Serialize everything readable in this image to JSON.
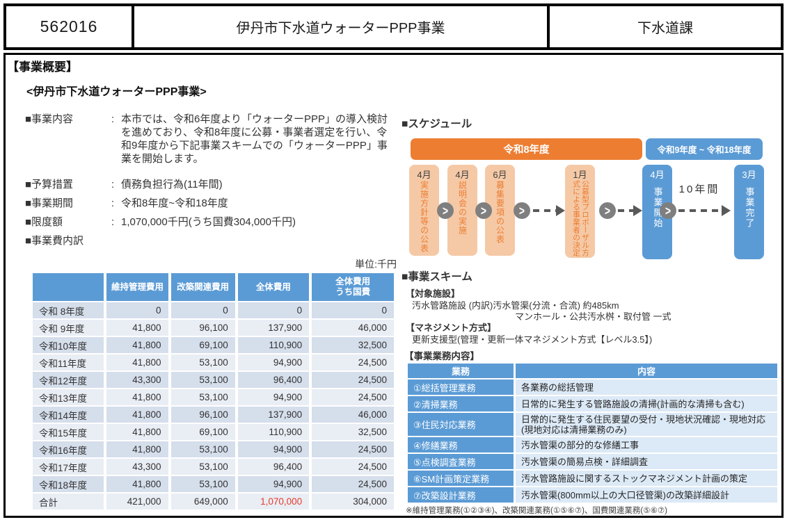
{
  "colors": {
    "orange": "#ED7D31",
    "peach": "#F5C9A6",
    "blue": "#5B9BD5",
    "row_dark": "#D5DEEB",
    "row_light": "#E9EDF4",
    "content_cell": "#DCE9F6",
    "red_total": "#E8392B"
  },
  "header": {
    "code": "562016",
    "title": "伊丹市下水道ウォーターPPP事業",
    "department": "下水道課"
  },
  "page": {
    "section_title": "【事業概要】",
    "subtitle": "<伊丹市下水道ウォーターPPP事業>"
  },
  "overview": {
    "items": [
      {
        "label": "■事業内容",
        "colon": ":",
        "value": " 本市では、令和6年度より「ウォーターPPP」の導入検討を進めており、令和8年度に公募・事業者選定を行い、令和9年度から下記事業スキームでの「ウォーターPPP」事業を開始します。"
      },
      {
        "label": "■予算措置",
        "colon": ":",
        "value": "債務負担行為(11年間)"
      },
      {
        "label": "■事業期間",
        "colon": ":",
        "value": "令和8年度~令和18年度"
      },
      {
        "label": "■限度額",
        "colon": ":",
        "value": "1,070,000千円(うち国費304,000千円)"
      },
      {
        "label": "■事業費内訳",
        "colon": "",
        "value": ""
      }
    ]
  },
  "fee_table": {
    "unit_label": "単位:千円",
    "headers": [
      "",
      "維持管理費用",
      "改築関連費用",
      "全体費用",
      "全体費用\nうち国費"
    ],
    "rows": [
      [
        "令和 8年度",
        "0",
        "0",
        "0",
        "0"
      ],
      [
        "令和 9年度",
        "41,800",
        "96,100",
        "137,900",
        "46,000"
      ],
      [
        "令和10年度",
        "41,800",
        "69,100",
        "110,900",
        "32,500"
      ],
      [
        "令和11年度",
        "41,800",
        "53,100",
        "94,900",
        "24,500"
      ],
      [
        "令和12年度",
        "43,300",
        "53,100",
        "96,400",
        "24,500"
      ],
      [
        "令和13年度",
        "41,800",
        "53,100",
        "94,900",
        "24,500"
      ],
      [
        "令和14年度",
        "41,800",
        "96,100",
        "137,900",
        "46,000"
      ],
      [
        "令和15年度",
        "41,800",
        "69,100",
        "110,900",
        "32,500"
      ],
      [
        "令和16年度",
        "41,800",
        "53,100",
        "94,900",
        "24,500"
      ],
      [
        "令和17年度",
        "43,300",
        "53,100",
        "96,400",
        "24,500"
      ],
      [
        "令和18年度",
        "41,800",
        "53,100",
        "94,900",
        "24,500"
      ],
      [
        "合計",
        "421,000",
        "649,000",
        "1,070,000",
        "304,000"
      ]
    ],
    "total_row_index": 11,
    "highlight_col": 3
  },
  "schedule": {
    "heading": "■スケジュール",
    "period_bars": [
      {
        "label": "令和8年度"
      },
      {
        "label": "令和9年度 ~ 令和18年度"
      }
    ],
    "steps": [
      {
        "month": "4月",
        "text": "実施方針等の公表"
      },
      {
        "month": "4月",
        "text": "説明会の実施"
      },
      {
        "month": "6月",
        "text": "募集要項の公表"
      },
      {
        "month": "1月",
        "text": "公募型プロポーザル方式による事業者の決定"
      },
      {
        "month": "4月",
        "text": "事業開始"
      },
      {
        "month": "3月",
        "text": "事業完了"
      }
    ],
    "duration_label": "10年間"
  },
  "scheme": {
    "heading": "■事業スキーム",
    "target_heading": "【対象施設】",
    "target_line1": "汚水管路施設 (内訳)汚水管渠(分流・合流) 約485km",
    "target_line2": "マンホール・公共汚水桝・取付管 一式",
    "management_heading": "【マネジメント方式】",
    "management_value": "更新支援型(管理・更新一体マネジメント方式【レベル3.5】)",
    "business_heading": "【事業業務内容】",
    "table": {
      "headers": [
        "業務",
        "内容"
      ],
      "rows": [
        {
          "label": "①総括管理業務",
          "content": "各業務の総括管理"
        },
        {
          "label": "②清掃業務",
          "content": "日常的に発生する管路施設の清掃(計画的な清掃も含む)"
        },
        {
          "label": "③住民対応業務",
          "content": "日常的に発生する住民要望の受付・現地状況確認・現地対応\n(現地対応は清掃業務のみ)"
        },
        {
          "label": "④修繕業務",
          "content": "汚水管渠の部分的な修繕工事"
        },
        {
          "label": "⑤点検調査業務",
          "content": "汚水管渠の簡易点検・詳細調査"
        },
        {
          "label": "⑥SM計画策定業務",
          "content": "汚水管路施設に関するストックマネジメント計画の策定"
        },
        {
          "label": "⑦改築設計業務",
          "content": "汚水管渠(800mm以上の大口径管渠)の改築詳細設計"
        }
      ]
    },
    "footnote": "※維持管理業務(①②③④)、改築関連業務(①⑤⑥⑦)、国費関連業務(⑤⑥⑦)"
  }
}
